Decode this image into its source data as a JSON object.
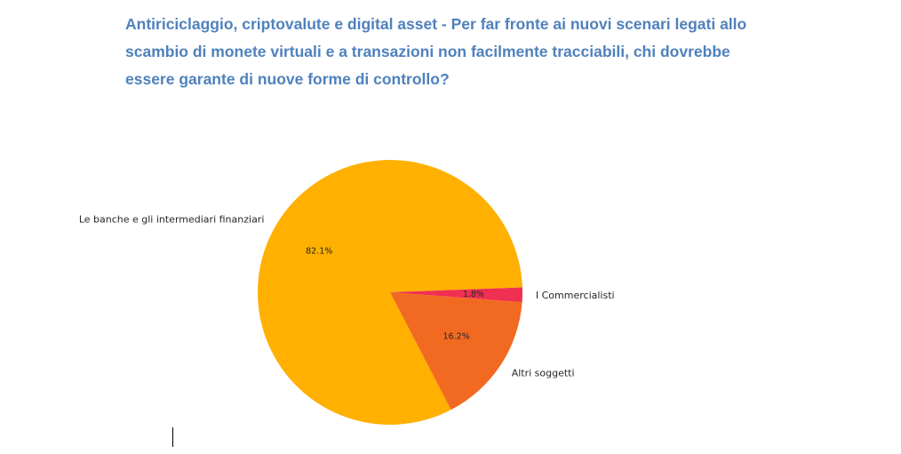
{
  "chart_data": {
    "type": "pie",
    "title": "Antiriciclaggio, criptovalute e digital asset - Per far fronte ai nuovi scenari legati allo scambio di monete virtuali e a transazioni non facilmente tracciabili, chi dovrebbe essere garante di nuove forme di controllo?",
    "slices": [
      {
        "label": "Le banche e gli intermediari finanziari",
        "value": 82.1,
        "pct_label": "82.1%",
        "color": "#ffb000"
      },
      {
        "label": "I Commercialisti",
        "value": 1.8,
        "pct_label": "1.8%",
        "color": "#f03050"
      },
      {
        "label": "Altri soggetti",
        "value": 16.2,
        "pct_label": "16.2%",
        "color": "#f26a21"
      }
    ],
    "legend": "none"
  }
}
